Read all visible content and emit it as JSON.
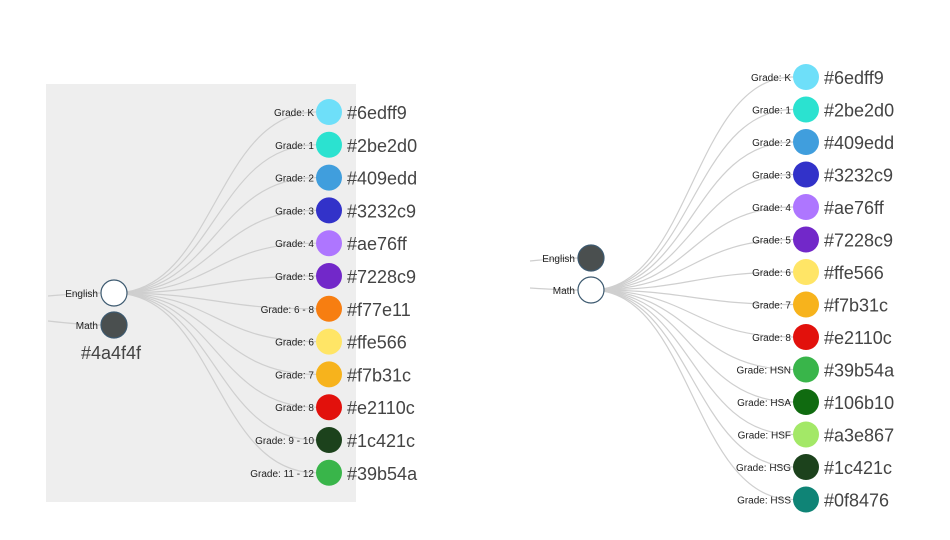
{
  "left_panel": {
    "background": "#eeeeee",
    "roots": [
      {
        "label": "English",
        "color": "#ffffff",
        "selected": true
      },
      {
        "label": "Math",
        "color": "#4a4f4f",
        "hex": "#4a4f4f"
      }
    ],
    "leaves": [
      {
        "label": "Grade: K",
        "color": "#6edff9",
        "hex": "#6edff9"
      },
      {
        "label": "Grade: 1",
        "color": "#2be2d0",
        "hex": "#2be2d0"
      },
      {
        "label": "Grade: 2",
        "color": "#409edd",
        "hex": "#409edd"
      },
      {
        "label": "Grade: 3",
        "color": "#3232c9",
        "hex": "#3232c9"
      },
      {
        "label": "Grade: 4",
        "color": "#ae76ff",
        "hex": "#ae76ff"
      },
      {
        "label": "Grade: 5",
        "color": "#7228c9",
        "hex": "#7228c9"
      },
      {
        "label": "Grade: 6 - 8",
        "color": "#f77e11",
        "hex": "#f77e11"
      },
      {
        "label": "Grade: 6",
        "color": "#ffe566",
        "hex": "#ffe566"
      },
      {
        "label": "Grade: 7",
        "color": "#f7b31c",
        "hex": "#f7b31c"
      },
      {
        "label": "Grade: 8",
        "color": "#e2110c",
        "hex": "#e2110c"
      },
      {
        "label": "Grade: 9 - 10",
        "color": "#1c421c",
        "hex": "#1c421c"
      },
      {
        "label": "Grade: 11 - 12",
        "color": "#39b54a",
        "hex": "#39b54a"
      }
    ]
  },
  "right_panel": {
    "roots": [
      {
        "label": "English",
        "color": "#4a4f4f"
      },
      {
        "label": "Math",
        "color": "#ffffff",
        "selected": true
      }
    ],
    "leaves": [
      {
        "label": "Grade: K",
        "color": "#6edff9",
        "hex": "#6edff9"
      },
      {
        "label": "Grade: 1",
        "color": "#2be2d0",
        "hex": "#2be2d0"
      },
      {
        "label": "Grade: 2",
        "color": "#409edd",
        "hex": "#409edd"
      },
      {
        "label": "Grade: 3",
        "color": "#3232c9",
        "hex": "#3232c9"
      },
      {
        "label": "Grade: 4",
        "color": "#ae76ff",
        "hex": "#ae76ff"
      },
      {
        "label": "Grade: 5",
        "color": "#7228c9",
        "hex": "#7228c9"
      },
      {
        "label": "Grade: 6",
        "color": "#ffe566",
        "hex": "#ffe566"
      },
      {
        "label": "Grade: 7",
        "color": "#f7b31c",
        "hex": "#f7b31c"
      },
      {
        "label": "Grade: 8",
        "color": "#e2110c",
        "hex": "#e2110c"
      },
      {
        "label": "Grade: HSN",
        "color": "#39b54a",
        "hex": "#39b54a"
      },
      {
        "label": "Grade: HSA",
        "color": "#106b10",
        "hex": "#106b10"
      },
      {
        "label": "Grade: HSF",
        "color": "#a3e867",
        "hex": "#a3e867"
      },
      {
        "label": "Grade: HSG",
        "color": "#1c421c",
        "hex": "#1c421c"
      },
      {
        "label": "Grade: HSS",
        "color": "#0f8476",
        "hex": "#0f8476"
      }
    ]
  }
}
